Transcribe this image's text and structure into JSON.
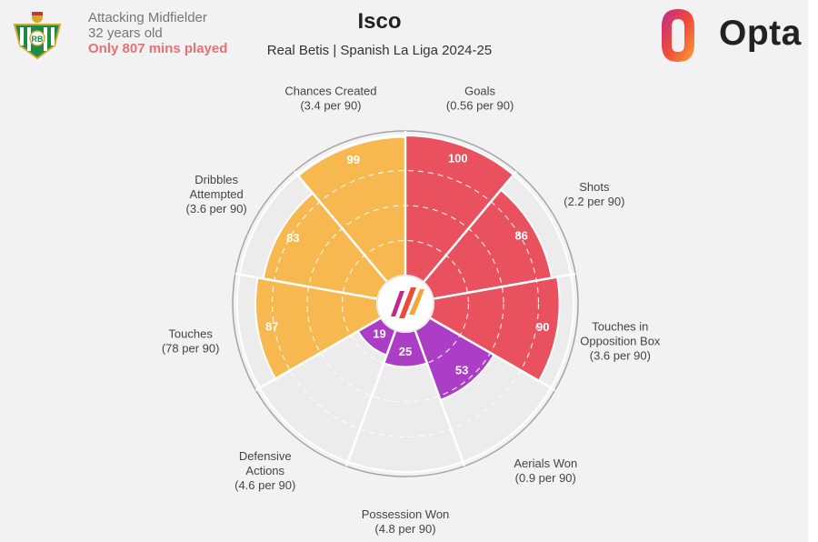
{
  "player": {
    "name": "Isco",
    "position": "Attacking Midfielder",
    "age": "32 years old",
    "minutes_note": "Only 807 mins played",
    "subtitle": "Real Betis | Spanish La Liga 2024-25"
  },
  "branding": {
    "logo_text": "Opta",
    "crest_icon": "real-betis-crest-icon",
    "center_icon": "opta-mark-icon"
  },
  "colors": {
    "attacking": "#f7b94f",
    "shooting": "#e9515f",
    "possession": "#ab3dc6",
    "empty_slice": "#ececec",
    "minutes_note": "#e66f78"
  },
  "chart_data": {
    "type": "radar-pizza",
    "scale": [
      0,
      100
    ],
    "slices": [
      {
        "label": [
          "Goals",
          "(0.56 per 90)"
        ],
        "percentile": 100,
        "group": "shooting"
      },
      {
        "label": [
          "Shots",
          "(2.2 per 90)"
        ],
        "percentile": 86,
        "group": "shooting"
      },
      {
        "label": [
          "Touches in",
          "Opposition Box",
          "(3.6 per 90)"
        ],
        "percentile": 90,
        "group": "shooting"
      },
      {
        "label": [
          "Aerials Won",
          "(0.9 per 90)"
        ],
        "percentile": 53,
        "group": "possession"
      },
      {
        "label": [
          "Possession Won",
          "(4.8 per 90)"
        ],
        "percentile": 25,
        "group": "possession"
      },
      {
        "label": [
          "Defensive",
          "Actions",
          "(4.6 per 90)"
        ],
        "percentile": 19,
        "group": "possession"
      },
      {
        "label": [
          "Touches",
          "(78 per 90)"
        ],
        "percentile": 87,
        "group": "attacking"
      },
      {
        "label": [
          "Dribbles",
          "Attempted",
          "(3.6 per 90)"
        ],
        "percentile": 83,
        "group": "attacking"
      },
      {
        "label": [
          "Chances Created",
          "(3.4 per 90)"
        ],
        "percentile": 99,
        "group": "attacking"
      }
    ]
  }
}
